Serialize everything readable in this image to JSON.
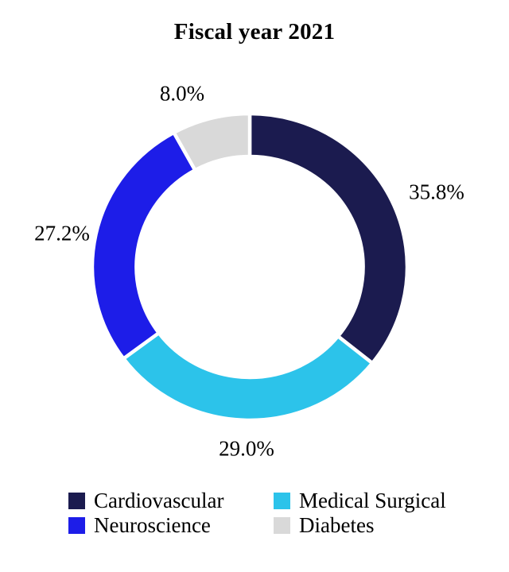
{
  "title": "Fiscal year 2021",
  "chart_data": {
    "type": "pie",
    "subtype": "donut",
    "title": "Fiscal year 2021",
    "categories": [
      "Cardiovascular",
      "Medical Surgical",
      "Neuroscience",
      "Diabetes"
    ],
    "values": [
      35.8,
      29.0,
      27.2,
      8.0
    ],
    "value_labels": [
      "35.8%",
      "29.0%",
      "27.2%",
      "8.0%"
    ],
    "colors": [
      "#1b1b4f",
      "#2cc3ea",
      "#1d1de8",
      "#d9d9d9"
    ],
    "start_angle_deg": 0,
    "direction": "clockwise",
    "inner_radius_ratio": 0.72,
    "slice_gap_color": "#ffffff",
    "legend_position": "bottom",
    "legend": [
      {
        "label": "Cardiovascular",
        "color": "#1b1b4f"
      },
      {
        "label": "Medical Surgical",
        "color": "#2cc3ea"
      },
      {
        "label": "Neuroscience",
        "color": "#1d1de8"
      },
      {
        "label": "Diabetes",
        "color": "#d9d9d9"
      }
    ]
  }
}
